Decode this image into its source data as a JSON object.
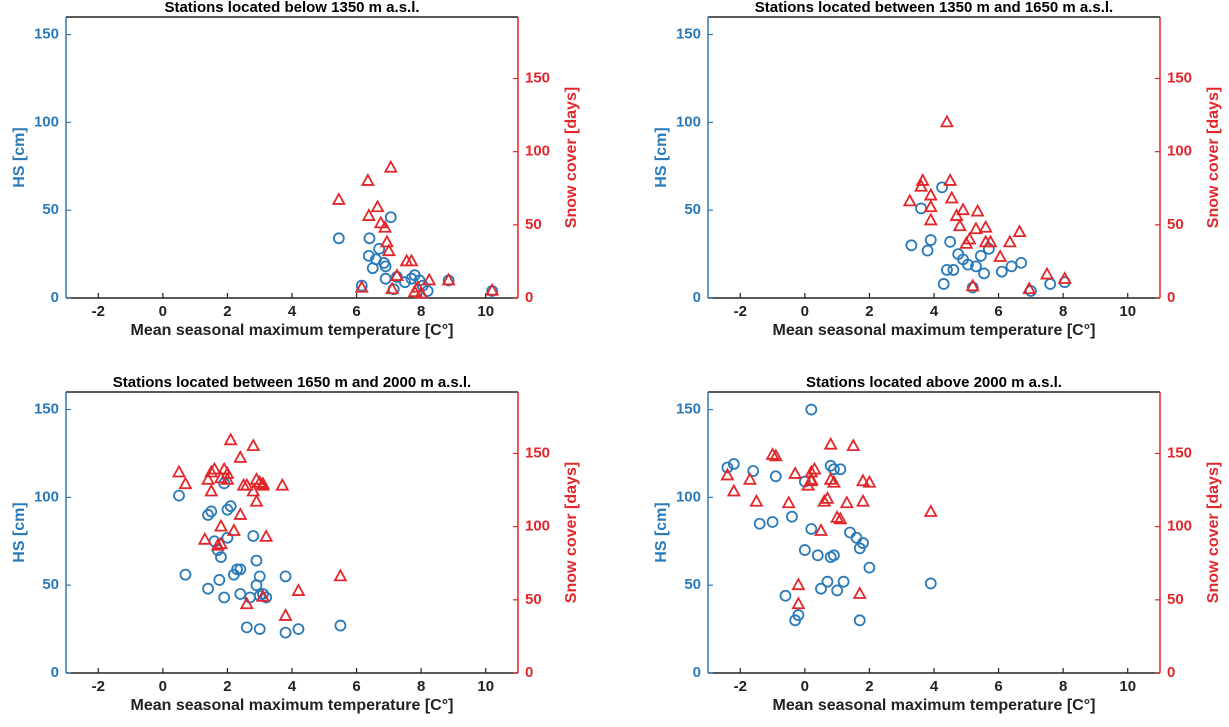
{
  "chart_data": [
    {
      "type": "scatter",
      "title": "Stations located below 1350 m a.s.l.",
      "xlabel": "Mean seasonal maximum temperature [C°]",
      "ylabel": "HS [cm]",
      "y2label": "Snow cover [days]",
      "xlim": [
        -3,
        11
      ],
      "xticks": [
        -2,
        0,
        2,
        4,
        6,
        8,
        10
      ],
      "ylim": [
        0,
        160
      ],
      "yticks": [
        0,
        50,
        100,
        150
      ],
      "y2lim": [
        0,
        192
      ],
      "y2ticks": [
        0,
        50,
        100,
        150
      ],
      "series": [
        {
          "color": "#2a7ab9",
          "marker": "circle",
          "axis": "y",
          "x": [
            5.45,
            6.16,
            6.38,
            6.4,
            6.5,
            6.6,
            6.7,
            6.85,
            6.9,
            7.06,
            6.9,
            7.15,
            7.25,
            7.5,
            7.7,
            7.8,
            7.95,
            8.05,
            8.2,
            8.85,
            10.2
          ],
          "values": [
            34,
            7,
            24,
            34,
            17,
            22,
            28,
            20,
            18,
            46,
            11,
            5,
            12,
            9,
            11,
            13,
            10,
            7,
            4,
            10,
            4
          ]
        },
        {
          "color": "#e3262a",
          "marker": "triangle",
          "axis": "y2",
          "x": [
            5.45,
            6.16,
            6.38,
            6.35,
            6.65,
            6.75,
            6.88,
            6.94,
            7.06,
            7.0,
            7.1,
            7.25,
            7.55,
            7.7,
            7.8,
            7.9,
            8.0,
            8.25,
            8.85,
            10.2
          ],
          "values": [
            67,
            7,
            56,
            80,
            62,
            51,
            48,
            38,
            89,
            32,
            6,
            15,
            25,
            25,
            4,
            7,
            3,
            12,
            12,
            5
          ]
        }
      ]
    },
    {
      "type": "scatter",
      "title": "Stations located between 1350 m and 1650 m a.s.l.",
      "xlabel": "Mean seasonal maximum temperature [C°]",
      "ylabel": "HS [cm]",
      "y2label": "Snow cover [days]",
      "xlim": [
        -3,
        11
      ],
      "xticks": [
        -2,
        0,
        2,
        4,
        6,
        8,
        10
      ],
      "ylim": [
        0,
        160
      ],
      "yticks": [
        0,
        50,
        100,
        150
      ],
      "y2lim": [
        0,
        192
      ],
      "y2ticks": [
        0,
        50,
        100,
        150
      ],
      "series": [
        {
          "color": "#2a7ab9",
          "marker": "circle",
          "axis": "y",
          "x": [
            3.3,
            3.6,
            3.8,
            3.9,
            4.25,
            4.3,
            4.4,
            4.5,
            4.6,
            4.75,
            4.9,
            5.05,
            5.2,
            5.3,
            5.45,
            5.55,
            5.7,
            6.1,
            6.4,
            6.7,
            7.0,
            7.6,
            8.05
          ],
          "values": [
            30,
            51,
            27,
            33,
            63,
            8,
            16,
            32,
            16,
            25,
            22,
            19,
            6,
            18,
            24,
            14,
            28,
            15,
            18,
            20,
            4,
            8,
            9
          ]
        },
        {
          "color": "#e3262a",
          "marker": "triangle",
          "axis": "y2",
          "x": [
            3.25,
            3.6,
            3.65,
            3.9,
            3.9,
            3.9,
            4.4,
            4.5,
            4.55,
            4.7,
            4.8,
            4.9,
            5.0,
            5.1,
            5.2,
            5.3,
            5.35,
            5.6,
            5.6,
            5.75,
            6.05,
            6.35,
            6.65,
            6.95,
            7.5,
            8.05
          ],
          "values": [
            66,
            76,
            80,
            70,
            62,
            53,
            120,
            80,
            68,
            56,
            49,
            60,
            37,
            40,
            8,
            47,
            59,
            48,
            38,
            38,
            28,
            38,
            45,
            6,
            16,
            13
          ]
        }
      ]
    },
    {
      "type": "scatter",
      "title": "Stations located between 1650 m and 2000 m a.s.l.",
      "xlabel": "Mean seasonal maximum temperature [C°]",
      "ylabel": "HS [cm]",
      "y2label": "Snow cover [days]",
      "xlim": [
        -3,
        11
      ],
      "xticks": [
        -2,
        0,
        2,
        4,
        6,
        8,
        10
      ],
      "ylim": [
        0,
        160
      ],
      "yticks": [
        0,
        50,
        100,
        150
      ],
      "y2lim": [
        0,
        192
      ],
      "y2ticks": [
        0,
        50,
        100,
        150
      ],
      "series": [
        {
          "color": "#2a7ab9",
          "marker": "circle",
          "axis": "y",
          "x": [
            0.5,
            0.7,
            1.4,
            1.4,
            1.5,
            1.6,
            1.7,
            1.75,
            1.8,
            1.9,
            1.9,
            2.0,
            2.0,
            2.1,
            2.2,
            2.3,
            2.4,
            2.4,
            2.6,
            2.7,
            2.8,
            2.9,
            2.9,
            3.0,
            3.0,
            3.0,
            3.1,
            3.2,
            3.8,
            3.8,
            4.2,
            5.5
          ],
          "values": [
            101,
            56,
            48,
            90,
            92,
            75,
            70,
            53,
            66,
            43,
            108,
            77,
            93,
            95,
            56,
            59,
            45,
            59,
            26,
            43,
            78,
            64,
            50,
            55,
            44,
            25,
            45,
            43,
            55,
            23,
            25,
            27
          ]
        },
        {
          "color": "#e3262a",
          "marker": "triangle",
          "axis": "y2",
          "x": [
            0.5,
            0.7,
            1.3,
            1.4,
            1.5,
            1.5,
            1.6,
            1.7,
            1.8,
            1.8,
            1.8,
            1.9,
            2.0,
            2.0,
            2.1,
            2.2,
            2.4,
            2.4,
            2.5,
            2.6,
            2.6,
            2.8,
            2.8,
            2.9,
            2.9,
            3.0,
            3.1,
            3.1,
            3.1,
            3.2,
            3.7,
            3.8,
            4.2,
            5.5
          ],
          "values": [
            137,
            129,
            91,
            132,
            137,
            124,
            139,
            87,
            100,
            133,
            88,
            139,
            136,
            132,
            159,
            97,
            108,
            147,
            128,
            47,
            128,
            155,
            124,
            117,
            132,
            130,
            128,
            129,
            52,
            93,
            128,
            39,
            56,
            66
          ]
        }
      ]
    },
    {
      "type": "scatter",
      "title": "Stations located above 2000 m a.s.l.",
      "xlabel": "Mean seasonal maximum temperature [C°]",
      "ylabel": "HS [cm]",
      "y2label": "Snow cover [days]",
      "xlim": [
        -3,
        11
      ],
      "xticks": [
        -2,
        0,
        2,
        4,
        6,
        8,
        10
      ],
      "ylim": [
        0,
        160
      ],
      "yticks": [
        0,
        50,
        100,
        150
      ],
      "y2lim": [
        0,
        192
      ],
      "y2ticks": [
        0,
        50,
        100,
        150
      ],
      "series": [
        {
          "color": "#2a7ab9",
          "marker": "circle",
          "axis": "y",
          "x": [
            -2.4,
            -2.2,
            -1.6,
            -1.4,
            -1.0,
            -0.9,
            -0.6,
            -0.4,
            -0.3,
            -0.2,
            0.0,
            0.0,
            0.2,
            0.2,
            0.4,
            0.5,
            0.7,
            0.8,
            0.8,
            0.9,
            0.9,
            1.0,
            1.1,
            1.2,
            1.4,
            1.6,
            1.7,
            1.7,
            1.8,
            2.0,
            3.9
          ],
          "values": [
            117,
            119,
            115,
            85,
            86,
            112,
            44,
            89,
            30,
            33,
            109,
            70,
            82,
            150,
            67,
            48,
            52,
            66,
            118,
            67,
            116,
            47,
            116,
            52,
            80,
            77,
            30,
            71,
            74,
            60,
            51
          ]
        },
        {
          "color": "#e3262a",
          "marker": "triangle",
          "axis": "y2",
          "x": [
            -2.4,
            -2.2,
            -1.7,
            -1.5,
            -1.0,
            -0.9,
            -0.5,
            -0.3,
            -0.2,
            -0.2,
            0.1,
            0.2,
            0.2,
            0.2,
            0.3,
            0.5,
            0.6,
            0.7,
            0.8,
            0.8,
            0.9,
            1.0,
            1.1,
            1.3,
            1.5,
            1.7,
            1.8,
            1.8,
            2.0,
            3.9
          ],
          "values": [
            135,
            124,
            132,
            117,
            149,
            148,
            116,
            136,
            60,
            47,
            128,
            137,
            132,
            131,
            139,
            97,
            117,
            119,
            156,
            132,
            130,
            106,
            105,
            116,
            155,
            54,
            131,
            117,
            130,
            110
          ]
        }
      ]
    }
  ]
}
